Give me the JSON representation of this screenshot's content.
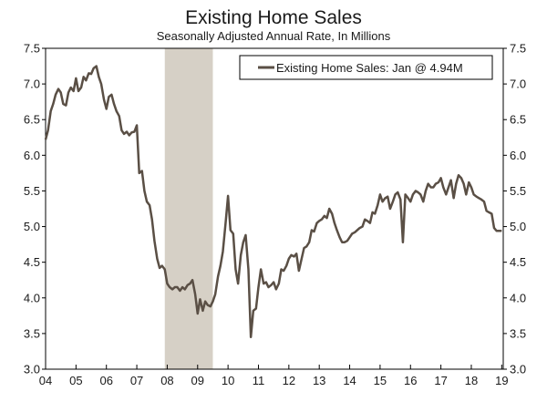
{
  "chart_data": {
    "type": "line",
    "title": "Existing Home Sales",
    "subtitle": "Seasonally Adjusted Annual Rate, In Millions",
    "xlabel": "",
    "ylabel": "",
    "ylim": [
      3.0,
      7.5
    ],
    "xlim": [
      2004.0,
      2019.05
    ],
    "y_ticks": [
      "3.0",
      "3.5",
      "4.0",
      "4.5",
      "5.0",
      "5.5",
      "6.0",
      "6.5",
      "7.0",
      "7.5"
    ],
    "x_ticks": [
      "04",
      "05",
      "06",
      "07",
      "08",
      "09",
      "10",
      "11",
      "12",
      "13",
      "14",
      "15",
      "16",
      "17",
      "18",
      "19"
    ],
    "grid": false,
    "legend_position": "top-right",
    "colors": {
      "line": "#5a4f45",
      "recession": "#d6d0c6",
      "axis": "#000000"
    },
    "recession": {
      "start": 2007.92,
      "end": 2009.5
    },
    "series": [
      {
        "name": "Existing Home Sales: Jan @ 4.94M",
        "x": [
          2004.0,
          2004.08,
          2004.17,
          2004.25,
          2004.33,
          2004.42,
          2004.5,
          2004.58,
          2004.67,
          2004.75,
          2004.83,
          2004.92,
          2005.0,
          2005.08,
          2005.17,
          2005.25,
          2005.33,
          2005.42,
          2005.5,
          2005.58,
          2005.67,
          2005.75,
          2005.83,
          2005.92,
          2006.0,
          2006.08,
          2006.17,
          2006.25,
          2006.33,
          2006.42,
          2006.5,
          2006.58,
          2006.67,
          2006.75,
          2006.83,
          2006.92,
          2007.0,
          2007.08,
          2007.17,
          2007.25,
          2007.33,
          2007.42,
          2007.5,
          2007.58,
          2007.67,
          2007.75,
          2007.83,
          2007.92,
          2008.0,
          2008.08,
          2008.17,
          2008.25,
          2008.33,
          2008.42,
          2008.5,
          2008.58,
          2008.67,
          2008.75,
          2008.83,
          2008.92,
          2009.0,
          2009.08,
          2009.17,
          2009.25,
          2009.33,
          2009.42,
          2009.5,
          2009.58,
          2009.67,
          2009.75,
          2009.83,
          2009.92,
          2010.0,
          2010.08,
          2010.17,
          2010.25,
          2010.33,
          2010.42,
          2010.5,
          2010.58,
          2010.67,
          2010.75,
          2010.83,
          2010.92,
          2011.0,
          2011.08,
          2011.17,
          2011.25,
          2011.33,
          2011.42,
          2011.5,
          2011.58,
          2011.67,
          2011.75,
          2011.83,
          2011.92,
          2012.0,
          2012.08,
          2012.17,
          2012.25,
          2012.33,
          2012.42,
          2012.5,
          2012.58,
          2012.67,
          2012.75,
          2012.83,
          2012.92,
          2013.0,
          2013.08,
          2013.17,
          2013.25,
          2013.33,
          2013.42,
          2013.5,
          2013.58,
          2013.67,
          2013.75,
          2013.83,
          2013.92,
          2014.0,
          2014.08,
          2014.17,
          2014.25,
          2014.33,
          2014.42,
          2014.5,
          2014.58,
          2014.67,
          2014.75,
          2014.83,
          2014.92,
          2015.0,
          2015.08,
          2015.17,
          2015.25,
          2015.33,
          2015.42,
          2015.5,
          2015.58,
          2015.67,
          2015.75,
          2015.83,
          2015.92,
          2016.0,
          2016.08,
          2016.17,
          2016.25,
          2016.33,
          2016.42,
          2016.5,
          2016.58,
          2016.67,
          2016.75,
          2016.83,
          2016.92,
          2017.0,
          2017.08,
          2017.17,
          2017.25,
          2017.33,
          2017.42,
          2017.5,
          2017.58,
          2017.67,
          2017.75,
          2017.83,
          2017.92,
          2018.0,
          2018.08,
          2018.17,
          2018.25,
          2018.33,
          2018.42,
          2018.5,
          2018.58,
          2018.67,
          2018.75,
          2018.83,
          2018.92,
          2019.0
        ],
        "values": [
          6.22,
          6.35,
          6.62,
          6.72,
          6.85,
          6.93,
          6.88,
          6.72,
          6.7,
          6.88,
          6.95,
          6.9,
          7.08,
          6.9,
          6.95,
          7.1,
          7.05,
          7.15,
          7.14,
          7.22,
          7.25,
          7.1,
          7.0,
          6.78,
          6.65,
          6.82,
          6.85,
          6.72,
          6.62,
          6.55,
          6.35,
          6.3,
          6.33,
          6.28,
          6.32,
          6.33,
          6.42,
          5.75,
          5.78,
          5.5,
          5.35,
          5.3,
          5.1,
          4.8,
          4.55,
          4.42,
          4.45,
          4.4,
          4.2,
          4.15,
          4.12,
          4.15,
          4.15,
          4.1,
          4.15,
          4.12,
          4.18,
          4.2,
          4.25,
          4.05,
          3.78,
          3.98,
          3.82,
          3.95,
          3.9,
          3.88,
          3.95,
          4.05,
          4.3,
          4.45,
          4.65,
          5.05,
          5.43,
          4.95,
          4.9,
          4.4,
          4.2,
          4.6,
          4.78,
          4.88,
          4.4,
          3.45,
          3.82,
          3.85,
          4.15,
          4.4,
          4.2,
          4.22,
          4.15,
          4.18,
          4.22,
          4.12,
          4.2,
          4.4,
          4.38,
          4.45,
          4.55,
          4.6,
          4.58,
          4.62,
          4.38,
          4.55,
          4.7,
          4.72,
          4.78,
          4.95,
          4.93,
          5.05,
          5.08,
          5.1,
          5.15,
          5.12,
          5.25,
          5.18,
          5.05,
          4.95,
          4.85,
          4.78,
          4.78,
          4.8,
          4.85,
          4.9,
          4.92,
          4.95,
          4.98,
          5.0,
          5.1,
          5.08,
          5.05,
          5.2,
          5.18,
          5.3,
          5.45,
          5.35,
          5.4,
          5.42,
          5.25,
          5.35,
          5.45,
          5.48,
          5.38,
          4.78,
          5.45,
          5.4,
          5.35,
          5.45,
          5.5,
          5.48,
          5.45,
          5.35,
          5.5,
          5.6,
          5.55,
          5.55,
          5.6,
          5.62,
          5.68,
          5.55,
          5.45,
          5.55,
          5.65,
          5.4,
          5.6,
          5.72,
          5.68,
          5.6,
          5.45,
          5.62,
          5.55,
          5.45,
          5.42,
          5.4,
          5.38,
          5.35,
          5.22,
          5.2,
          5.18,
          4.98,
          4.94,
          4.94,
          4.94
        ]
      }
    ]
  }
}
